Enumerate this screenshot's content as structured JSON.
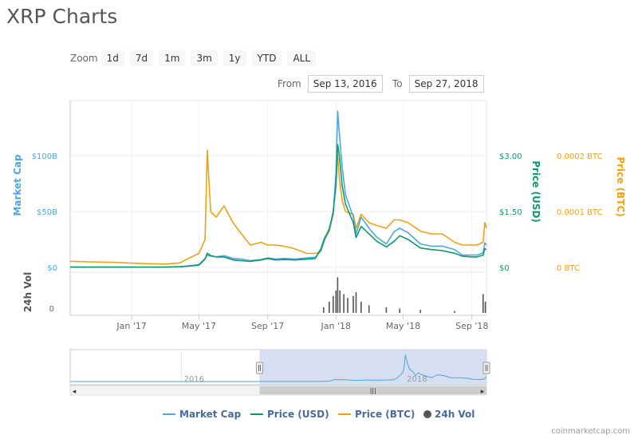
{
  "page": {
    "title": "XRP Charts"
  },
  "zoom": {
    "label": "Zoom",
    "buttons": [
      "1d",
      "7d",
      "1m",
      "3m",
      "1y",
      "YTD",
      "ALL"
    ]
  },
  "range": {
    "from_label": "From",
    "from_value": "Sep 13, 2016",
    "to_label": "To",
    "to_value": "Sep 27, 2018"
  },
  "colors": {
    "market_cap": "#4ea6dc",
    "price_usd": "#0b9a72",
    "price_btc": "#f3a00f",
    "volume": "#555555",
    "navigator_fill": "#d2dcef"
  },
  "chart_data": {
    "type": "line",
    "x_ticks": [
      "Jan '17",
      "May '17",
      "Sep '17",
      "Jan '18",
      "May '18",
      "Sep '18"
    ],
    "axes": {
      "market_cap": {
        "label": "Market Cap",
        "ticks": [
          "$0",
          "$50B",
          "$100B"
        ],
        "range": [
          0,
          100
        ]
      },
      "price_usd": {
        "label": "Price (USD)",
        "ticks": [
          "$0",
          "$1.50",
          "$3.00"
        ],
        "range": [
          0,
          3.0
        ]
      },
      "price_btc": {
        "label": "Price (BTC)",
        "ticks": [
          "0 BTC",
          "0.0001 BTC",
          "0.0002 BTC"
        ],
        "range": [
          0,
          0.0002
        ]
      },
      "volume": {
        "label": "24h Vol",
        "ticks": [
          "0"
        ]
      }
    },
    "x": [
      "2016-09-13",
      "2016-10-15",
      "2016-12-01",
      "2017-01-15",
      "2017-03-01",
      "2017-03-28",
      "2017-04-10",
      "2017-05-01",
      "2017-05-12",
      "2017-05-16",
      "2017-05-22",
      "2017-06-01",
      "2017-06-15",
      "2017-07-01",
      "2017-07-16",
      "2017-08-01",
      "2017-08-20",
      "2017-09-01",
      "2017-09-15",
      "2017-10-01",
      "2017-10-20",
      "2017-11-10",
      "2017-11-25",
      "2017-12-05",
      "2017-12-12",
      "2017-12-20",
      "2017-12-27",
      "2018-01-01",
      "2018-01-04",
      "2018-01-07",
      "2018-01-12",
      "2018-01-18",
      "2018-02-01",
      "2018-02-06",
      "2018-02-15",
      "2018-03-01",
      "2018-03-15",
      "2018-04-01",
      "2018-04-15",
      "2018-04-25",
      "2018-05-10",
      "2018-06-01",
      "2018-06-20",
      "2018-07-10",
      "2018-08-01",
      "2018-08-15",
      "2018-09-01",
      "2018-09-10",
      "2018-09-21",
      "2018-09-24",
      "2018-09-27"
    ],
    "series": [
      {
        "name": "Market Cap",
        "axis": "market_cap",
        "values": [
          0.3,
          0.3,
          0.25,
          0.24,
          0.25,
          0.5,
          1.2,
          2.5,
          8.0,
          11.0,
          10.0,
          9.5,
          10.5,
          8.0,
          7.5,
          6.0,
          7.0,
          8.5,
          7.5,
          8.0,
          7.5,
          8.5,
          9.0,
          15.0,
          25.0,
          35.0,
          48.0,
          85.0,
          140.0,
          120.0,
          90.0,
          65.0,
          45.0,
          30.0,
          45.0,
          35.0,
          27.0,
          21.0,
          32.0,
          35.0,
          31.0,
          21.0,
          19.0,
          19.0,
          16.0,
          11.0,
          11.0,
          11.0,
          13.0,
          22.0,
          20.0
        ]
      },
      {
        "name": "Price (USD)",
        "axis": "price_usd",
        "values": [
          0.006,
          0.006,
          0.007,
          0.006,
          0.007,
          0.02,
          0.03,
          0.06,
          0.22,
          0.38,
          0.32,
          0.28,
          0.28,
          0.2,
          0.18,
          0.16,
          0.2,
          0.24,
          0.2,
          0.21,
          0.2,
          0.22,
          0.24,
          0.5,
          0.8,
          1.0,
          1.5,
          2.2,
          3.3,
          3.0,
          2.2,
          1.7,
          1.2,
          0.8,
          1.1,
          0.9,
          0.7,
          0.55,
          0.7,
          0.85,
          0.75,
          0.52,
          0.48,
          0.45,
          0.38,
          0.3,
          0.28,
          0.28,
          0.33,
          0.5,
          0.48
        ]
      },
      {
        "name": "Price (BTC)",
        "axis": "price_btc",
        "values": [
          1.1e-05,
          1e-05,
          9e-06,
          7e-06,
          6e-06,
          8e-06,
          1.5e-05,
          2.5e-05,
          5e-05,
          0.00021,
          0.0001,
          9e-05,
          0.00011,
          8e-05,
          6e-05,
          4e-05,
          4.5e-05,
          4e-05,
          4e-05,
          3.8e-05,
          3.3e-05,
          2.5e-05,
          2.5e-05,
          2.8e-05,
          5e-05,
          6.5e-05,
          9.5e-05,
          0.00016,
          0.0002,
          0.00016,
          0.00012,
          0.0001,
          9.5e-05,
          7e-05,
          9.5e-05,
          8e-05,
          7.5e-05,
          7e-05,
          8.5e-05,
          8.5e-05,
          8e-05,
          6.5e-05,
          6e-05,
          6e-05,
          4.5e-05,
          4e-05,
          4e-05,
          4e-05,
          4.5e-05,
          8e-05,
          7e-05
        ]
      }
    ],
    "volume_x": [
      "2017-12-10",
      "2017-12-20",
      "2017-12-27",
      "2018-01-01",
      "2018-01-04",
      "2018-01-08",
      "2018-01-15",
      "2018-01-22",
      "2018-02-01",
      "2018-02-06",
      "2018-02-15",
      "2018-03-01",
      "2018-04-01",
      "2018-04-25",
      "2018-06-01",
      "2018-08-01",
      "2018-09-21",
      "2018-09-25"
    ],
    "volume_values": [
      0.15,
      0.3,
      0.45,
      0.6,
      0.95,
      0.6,
      0.5,
      0.4,
      0.45,
      0.55,
      0.3,
      0.2,
      0.15,
      0.12,
      0.08,
      0.05,
      0.5,
      0.3
    ],
    "legend": [
      "Market Cap",
      "Price (USD)",
      "Price (BTC)",
      "24h Vol"
    ],
    "legend_position": "bottom",
    "navigator_labels": [
      "2016",
      "2018"
    ],
    "navigator_values": [
      0.3,
      0.3,
      0.25,
      0.24,
      0.25,
      0.5,
      1.2,
      2.5,
      8.0,
      11.0,
      10.0,
      9.5,
      10.5,
      8.0,
      7.5,
      6.0,
      7.0,
      8.5,
      7.5,
      8.0,
      7.5,
      8.5,
      9.0,
      15.0,
      25.0,
      35.0,
      48.0,
      85.0,
      140.0,
      120.0,
      90.0,
      65.0,
      45.0,
      30.0,
      45.0,
      35.0,
      27.0,
      21.0,
      32.0,
      35.0,
      31.0,
      21.0,
      19.0,
      19.0,
      16.0,
      11.0,
      11.0,
      11.0,
      13.0,
      22.0,
      20.0
    ],
    "navigator_start": "2015-01-01",
    "navigator_end": "2018-09-27",
    "selected_start": "2016-09-13",
    "selected_end": "2018-09-27",
    "grid": true
  },
  "footer": {
    "watermark": "coinmarketcap.com"
  }
}
